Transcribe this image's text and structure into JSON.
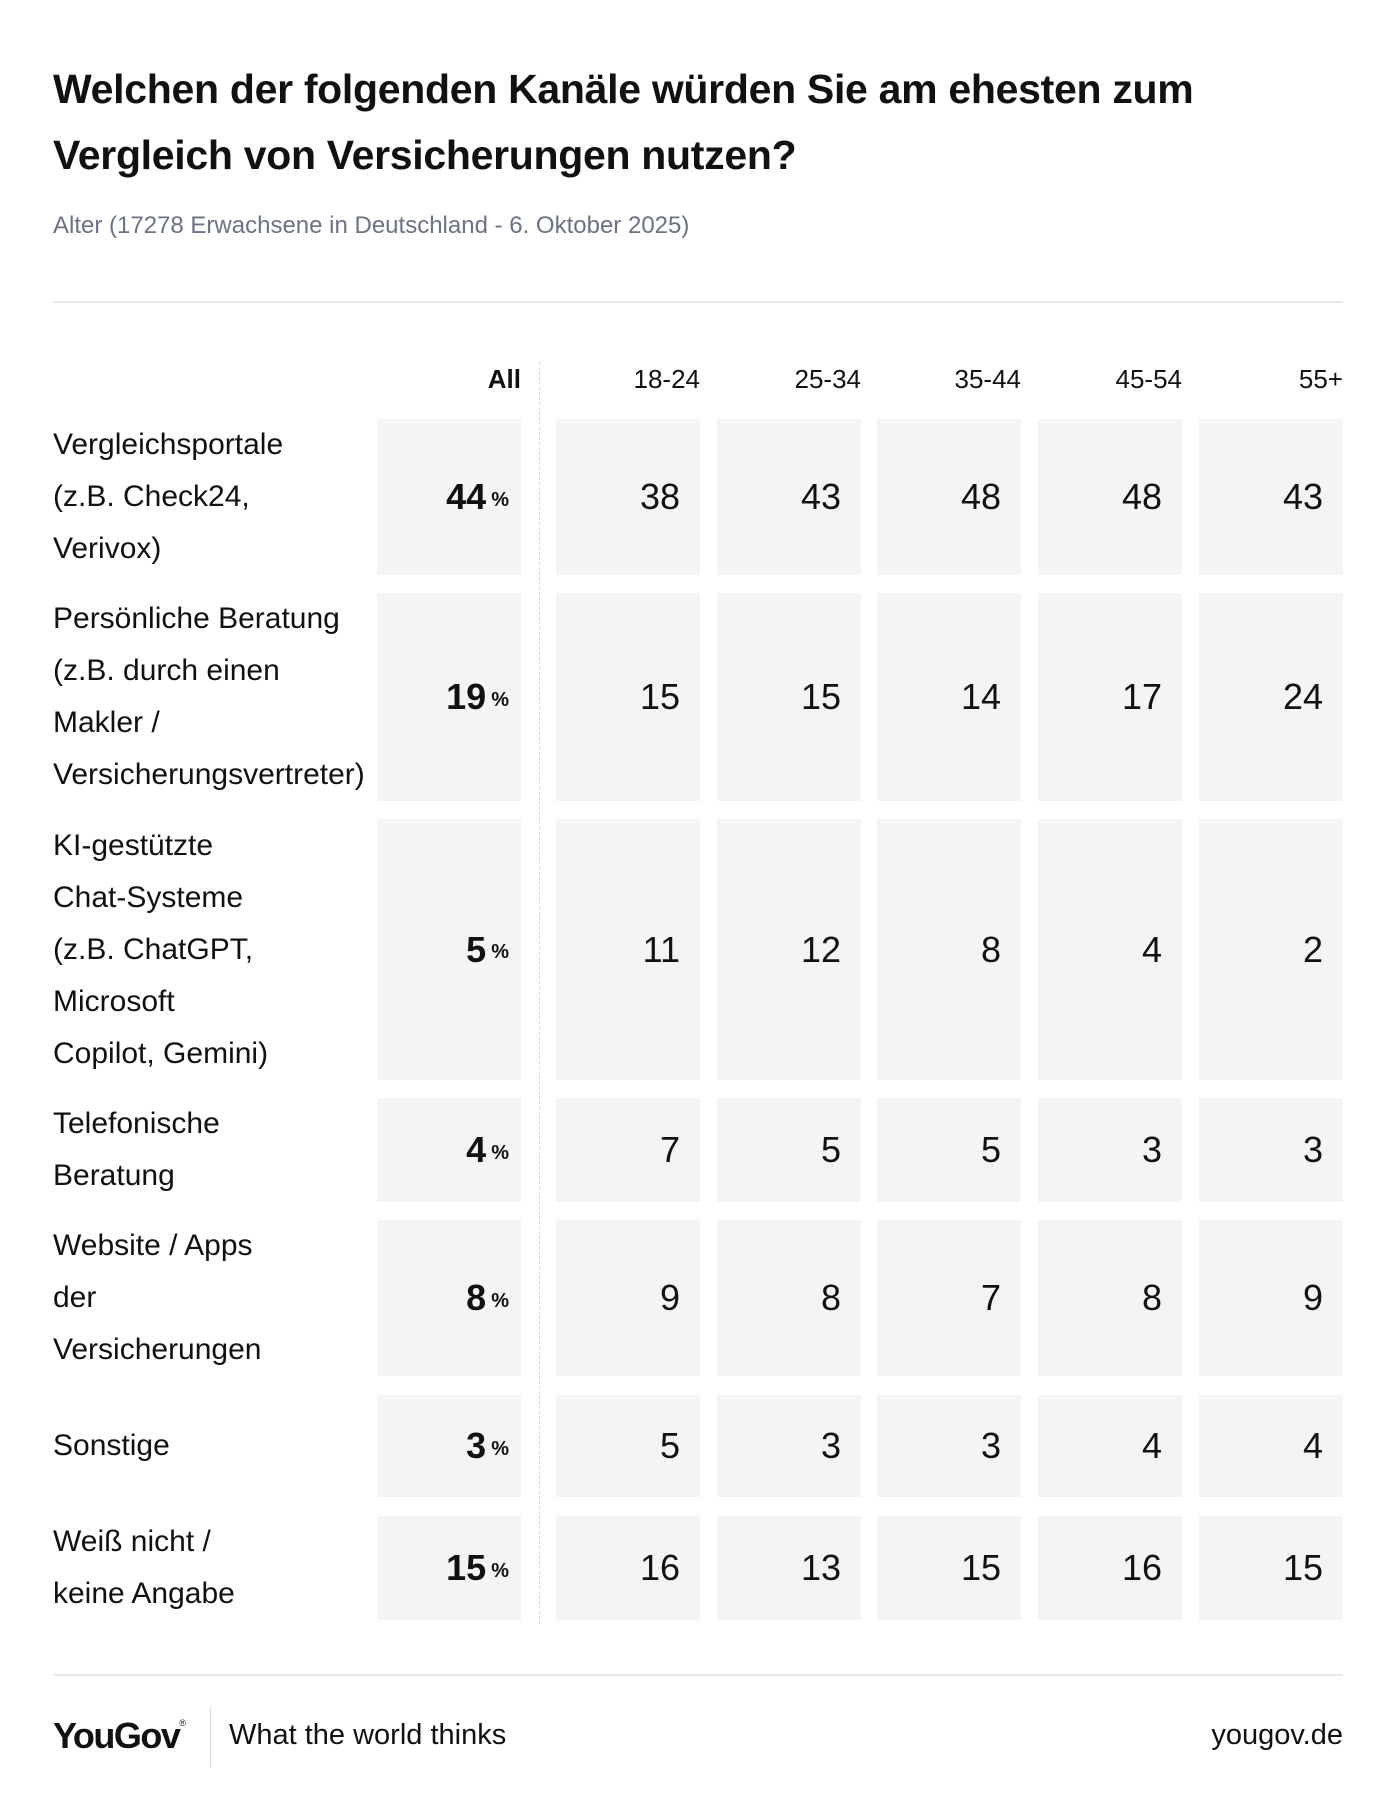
{
  "title": "Welchen der folgenden Kanäle würden Sie am ehesten zum Vergleich von Versicherungen nutzen?",
  "subtitle": "Alter (17278 Erwachsene in Deutschland - 6. Oktober 2025)",
  "columns": [
    "All",
    "18-24",
    "25-34",
    "35-44",
    "45-54",
    "55+"
  ],
  "percent_sign": "%",
  "rows": [
    {
      "label_lines": [
        "Vergleichsportale",
        "(z.B. Check24,",
        "Verivox)"
      ],
      "values": [
        44,
        38,
        43,
        48,
        48,
        43
      ]
    },
    {
      "label_lines": [
        "Persönliche Beratung",
        "(z.B. durch einen",
        "Makler /",
        "Versicherungsvertreter)"
      ],
      "values": [
        19,
        15,
        15,
        14,
        17,
        24
      ]
    },
    {
      "label_lines": [
        "KI-gestützte",
        "Chat-Systeme",
        "(z.B. ChatGPT,",
        "Microsoft",
        "Copilot, Gemini)"
      ],
      "values": [
        5,
        11,
        12,
        8,
        4,
        2
      ]
    },
    {
      "label_lines": [
        "Telefonische",
        "Beratung"
      ],
      "values": [
        4,
        7,
        5,
        5,
        3,
        3
      ]
    },
    {
      "label_lines": [
        "Website / Apps",
        "der",
        "Versicherungen"
      ],
      "values": [
        8,
        9,
        8,
        7,
        8,
        9
      ]
    },
    {
      "label_lines": [
        "Sonstige"
      ],
      "values": [
        3,
        5,
        3,
        3,
        4,
        4
      ]
    },
    {
      "label_lines": [
        "Weiß nicht /",
        "keine Angabe"
      ],
      "values": [
        15,
        16,
        13,
        15,
        16,
        15
      ]
    }
  ],
  "footer": {
    "logo": "YouGov",
    "logo_mark": "®",
    "tagline": "What the world thinks",
    "url": "yougov.de"
  },
  "colors": {
    "cell_background": "#f3f4f6",
    "subtitle": "#6b7285",
    "text": "#111111"
  },
  "chart_data": {
    "type": "table",
    "title": "Welchen der folgenden Kanäle würden Sie am ehesten zum Vergleich von Versicherungen nutzen?",
    "subtitle": "Alter (17278 Erwachsene in Deutschland - 6. Oktober 2025)",
    "unit": "%",
    "columns": [
      "All",
      "18-24",
      "25-34",
      "35-44",
      "45-54",
      "55+"
    ],
    "categories": [
      "Vergleichsportale (z.B. Check24, Verivox)",
      "Persönliche Beratung (z.B. durch einen Makler / Versicherungsvertreter)",
      "KI-gestützte Chat-Systeme (z.B. ChatGPT, Microsoft Copilot, Gemini)",
      "Telefonische Beratung",
      "Website / Apps der Versicherungen",
      "Sonstige",
      "Weiß nicht / keine Angabe"
    ],
    "series": [
      {
        "name": "All",
        "values": [
          44,
          19,
          5,
          4,
          8,
          3,
          15
        ]
      },
      {
        "name": "18-24",
        "values": [
          38,
          15,
          11,
          7,
          9,
          5,
          16
        ]
      },
      {
        "name": "25-34",
        "values": [
          43,
          15,
          12,
          5,
          8,
          3,
          13
        ]
      },
      {
        "name": "35-44",
        "values": [
          48,
          14,
          8,
          5,
          7,
          3,
          15
        ]
      },
      {
        "name": "45-54",
        "values": [
          48,
          17,
          4,
          3,
          8,
          4,
          16
        ]
      },
      {
        "name": "55+",
        "values": [
          43,
          24,
          2,
          3,
          9,
          4,
          15
        ]
      }
    ]
  }
}
